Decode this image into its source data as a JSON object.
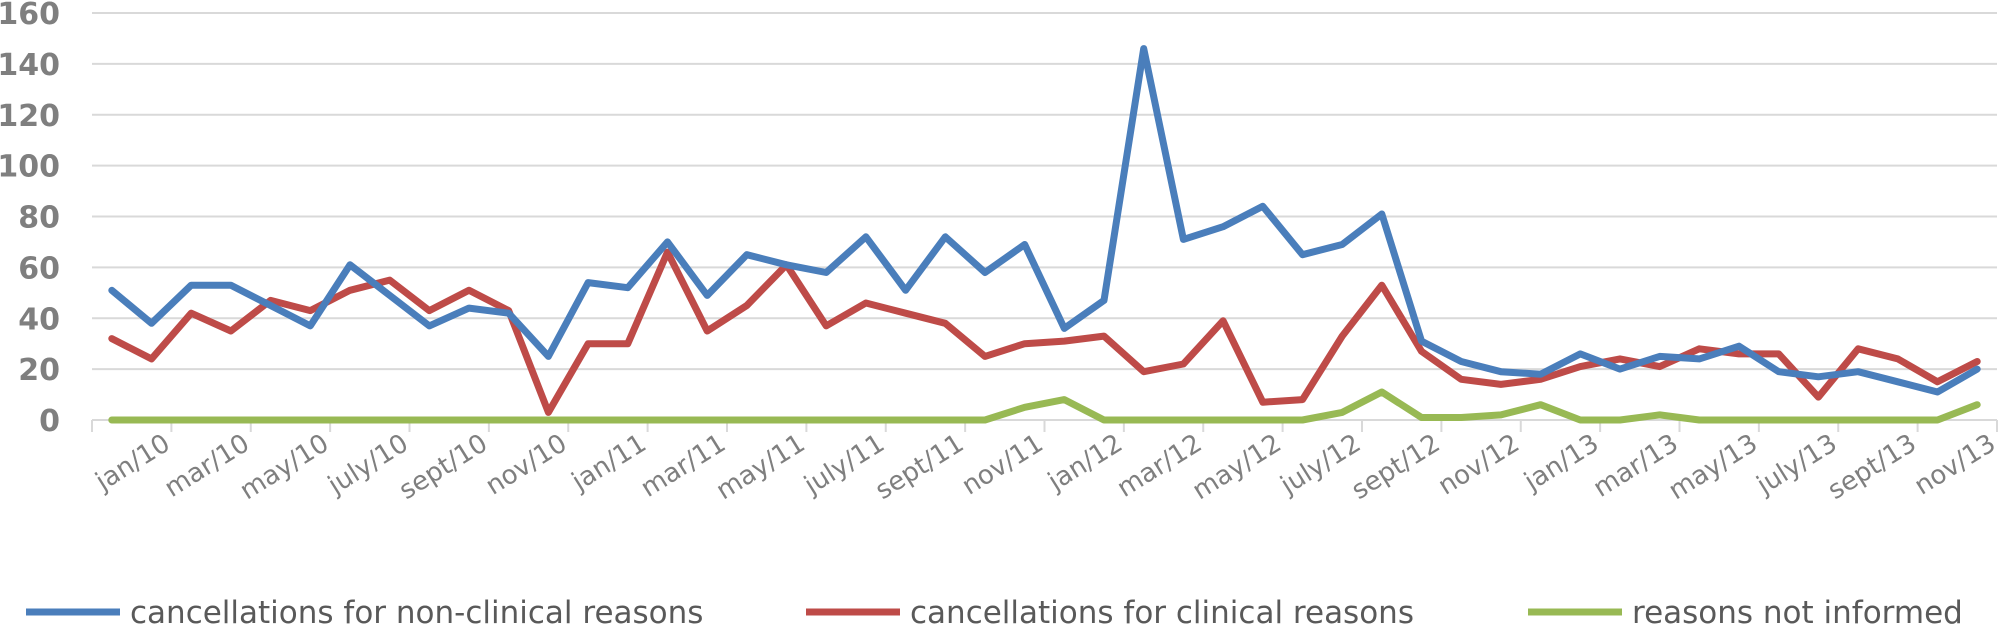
{
  "chart_data": {
    "type": "line",
    "title": "",
    "xlabel": "",
    "ylabel": "",
    "ylim": [
      0,
      160
    ],
    "yticks": [
      0,
      20,
      40,
      60,
      80,
      100,
      120,
      140,
      160
    ],
    "grid": true,
    "legend_position": "bottom",
    "categories": [
      "jan/10",
      "feb/10",
      "mar/10",
      "apr/10",
      "may/10",
      "jun/10",
      "july/10",
      "aug/10",
      "sept/10",
      "oct/10",
      "nov/10",
      "dec/10",
      "jan/11",
      "feb/11",
      "mar/11",
      "apr/11",
      "may/11",
      "jun/11",
      "july/11",
      "aug/11",
      "sept/11",
      "oct/11",
      "nov/11",
      "dec/11",
      "jan/12",
      "feb/12",
      "mar/12",
      "apr/12",
      "may/12",
      "jun/12",
      "july/12",
      "aug/12",
      "sept/12",
      "oct/12",
      "nov/12",
      "dec/12",
      "jan/13",
      "feb/13",
      "mar/13",
      "apr/13",
      "may/13",
      "jun/13",
      "july/13",
      "aug/13",
      "sept/13",
      "oct/13",
      "nov/13",
      "dec/13"
    ],
    "tick_labels": [
      "jan/10",
      "mar/10",
      "may/10",
      "july/10",
      "sept/10",
      "nov/10",
      "jan/11",
      "mar/11",
      "may/11",
      "july/11",
      "sept/11",
      "nov/11",
      "jan/12",
      "mar/12",
      "may/12",
      "july/12",
      "sept/12",
      "nov/12",
      "jan/13",
      "mar/13",
      "may/13",
      "july/13",
      "sept/13",
      "nov/13"
    ],
    "series": [
      {
        "name": "cancellations for non-clinical reasons",
        "color": "#4a7ebb",
        "values": [
          51,
          38,
          53,
          53,
          45,
          37,
          61,
          49,
          37,
          44,
          42,
          25,
          54,
          52,
          70,
          49,
          65,
          61,
          58,
          72,
          51,
          72,
          58,
          69,
          36,
          47,
          146,
          71,
          76,
          84,
          65,
          69,
          81,
          31,
          23,
          19,
          18,
          26,
          20,
          25,
          24,
          29,
          19,
          17,
          19,
          15,
          11,
          20
        ]
      },
      {
        "name": "cancellations for clinical reasons",
        "color": "#be4b48",
        "values": [
          32,
          24,
          42,
          35,
          47,
          43,
          51,
          55,
          43,
          51,
          43,
          3,
          30,
          30,
          66,
          35,
          45,
          61,
          37,
          46,
          42,
          38,
          25,
          30,
          31,
          33,
          19,
          22,
          39,
          7,
          8,
          33,
          53,
          27,
          16,
          14,
          16,
          21,
          24,
          21,
          28,
          26,
          26,
          9,
          28,
          24,
          15,
          23
        ]
      },
      {
        "name": "reasons not informed",
        "color": "#98b954",
        "values": [
          0,
          0,
          0,
          0,
          0,
          0,
          0,
          0,
          0,
          0,
          0,
          0,
          0,
          0,
          0,
          0,
          0,
          0,
          0,
          0,
          0,
          0,
          0,
          5,
          8,
          0,
          0,
          0,
          0,
          0,
          0,
          3,
          11,
          1,
          1,
          2,
          6,
          0,
          0,
          2,
          0,
          0,
          0,
          0,
          0,
          0,
          0,
          6
        ]
      }
    ]
  }
}
